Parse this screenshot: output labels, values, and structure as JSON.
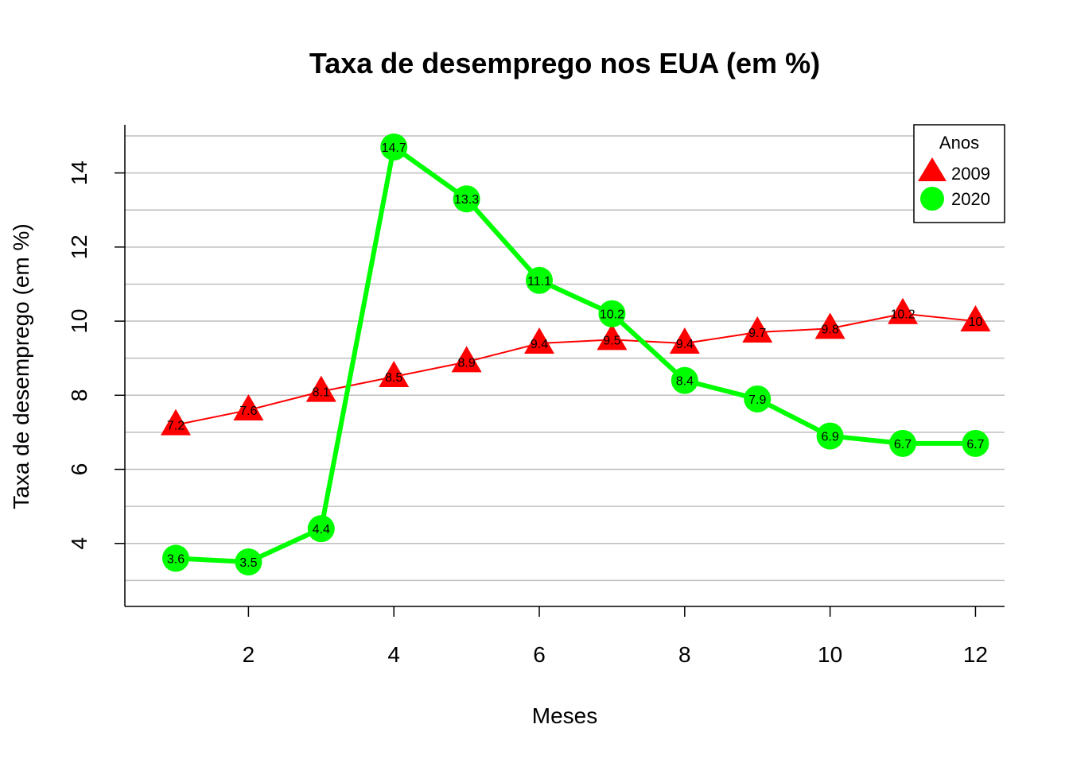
{
  "chart_data": {
    "type": "line",
    "title": "Taxa de desemprego nos EUA (em %)",
    "xlabel": "Meses",
    "ylabel": "Taxa de desemprego (em %)",
    "x": [
      1,
      2,
      3,
      4,
      5,
      6,
      7,
      8,
      9,
      10,
      11,
      12
    ],
    "xticks": [
      2,
      4,
      6,
      8,
      10,
      12
    ],
    "yticks": [
      4,
      6,
      8,
      10,
      12,
      14
    ],
    "xlim": [
      0.3,
      12.4
    ],
    "ylim": [
      2.3,
      15.3
    ],
    "grid": true,
    "legend": {
      "title": "Anos",
      "position": "top-right"
    },
    "series": [
      {
        "name": "2009",
        "color": "#ff0000",
        "marker": "triangle",
        "values": [
          7.2,
          7.6,
          8.1,
          8.5,
          8.9,
          9.4,
          9.5,
          9.4,
          9.7,
          9.8,
          10.2,
          10
        ],
        "labels": [
          "7.2",
          "7.6",
          "8.1",
          "8.5",
          "8.9",
          "9.4",
          "9.5",
          "9.4",
          "9.7",
          "9.8",
          "10.2",
          "10"
        ]
      },
      {
        "name": "2020",
        "color": "#00ff00",
        "marker": "circle",
        "values": [
          3.6,
          3.5,
          4.4,
          14.7,
          13.3,
          11.1,
          10.2,
          8.4,
          7.9,
          6.9,
          6.7,
          6.7
        ],
        "labels": [
          "3.6",
          "3.5",
          "4.4",
          "14.7",
          "13.3",
          "11.1",
          "10.2",
          "8.4",
          "7.9",
          "6.9",
          "6.7",
          "6.7"
        ]
      }
    ]
  }
}
